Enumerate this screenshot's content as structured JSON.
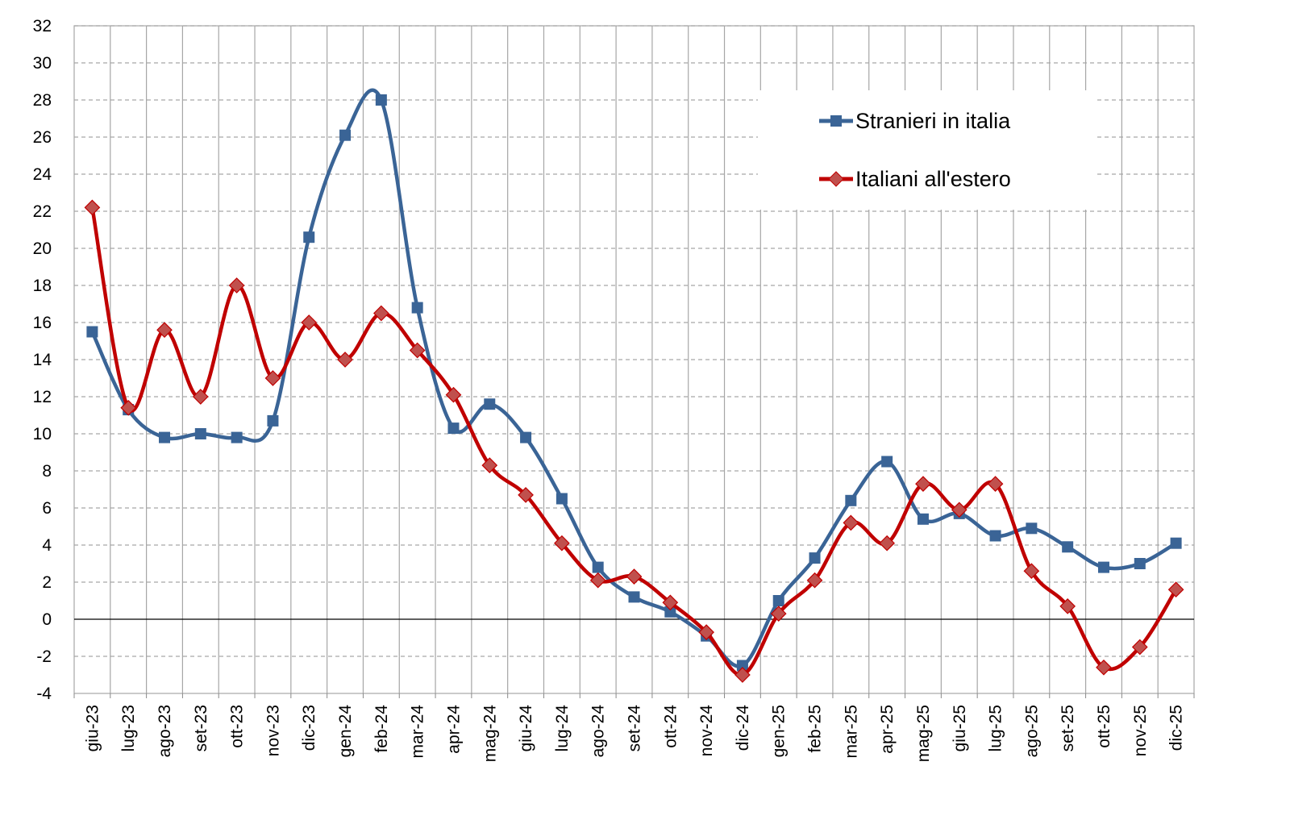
{
  "chart_data": {
    "type": "line",
    "title": "",
    "xlabel": "",
    "ylabel": "",
    "ylim": [
      -4,
      32
    ],
    "yticks": [
      "-4",
      "-2",
      "0",
      "2",
      "4",
      "6",
      "8",
      "10",
      "12",
      "14",
      "16",
      "18",
      "20",
      "22",
      "24",
      "26",
      "28",
      "30",
      "32"
    ],
    "grid": {
      "horizontal": "dashed",
      "vertical": "solid"
    },
    "legend_position": "top-right",
    "categories": [
      "giu-23",
      "lug-23",
      "ago-23",
      "set-23",
      "ott-23",
      "nov-23",
      "dic-23",
      "gen-24",
      "feb-24",
      "mar-24",
      "apr-24",
      "mag-24",
      "giu-24",
      "lug-24",
      "ago-24",
      "set-24",
      "ott-24",
      "nov-24",
      "dic-24",
      "gen-25",
      "feb-25",
      "mar-25",
      "apr-25",
      "mag-25",
      "giu-25",
      "lug-25",
      "ago-25",
      "set-25",
      "ott-25",
      "nov-25",
      "dic-25"
    ],
    "series": [
      {
        "name": "Stranieri in italia",
        "color": "#3a6496",
        "marker": "square",
        "values": [
          15.5,
          11.3,
          9.8,
          10.0,
          9.8,
          10.7,
          20.6,
          26.1,
          28.0,
          16.8,
          10.3,
          11.6,
          9.8,
          6.5,
          2.8,
          1.2,
          0.4,
          -0.9,
          -2.5,
          1.0,
          3.3,
          6.4,
          8.5,
          5.4,
          5.7,
          4.5,
          4.9,
          3.9,
          2.8,
          3.0,
          4.1
        ]
      },
      {
        "name": "Italiani all'estero",
        "color": "#c00000",
        "marker": "diamond",
        "values": [
          22.2,
          11.4,
          15.6,
          12.0,
          18.0,
          13.0,
          16.0,
          14.0,
          16.5,
          14.5,
          12.1,
          8.3,
          6.7,
          4.1,
          2.1,
          2.3,
          0.9,
          -0.7,
          -3.0,
          0.3,
          2.1,
          5.2,
          4.1,
          7.3,
          5.9,
          7.3,
          2.6,
          0.7,
          -2.6,
          -1.5,
          1.6
        ]
      }
    ]
  }
}
